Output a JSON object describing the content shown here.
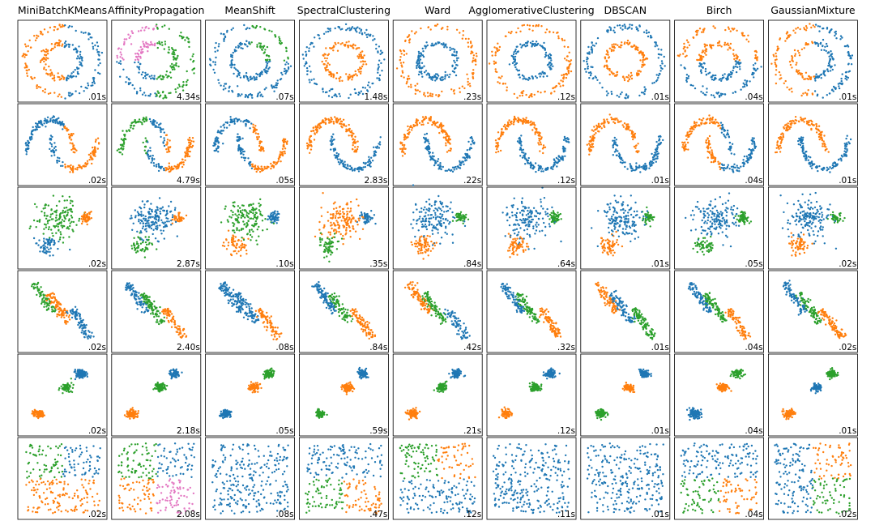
{
  "columns": [
    "MiniBatchKMeans",
    "AffinityPropagation",
    "MeanShift",
    "SpectralClustering",
    "Ward",
    "AgglomerativeClustering",
    "DBSCAN",
    "Birch",
    "GaussianMixture"
  ],
  "times": [
    [
      ".01s",
      "4.34s",
      ".07s",
      "1.48s",
      ".23s",
      ".12s",
      ".01s",
      ".04s",
      ".01s"
    ],
    [
      ".02s",
      "4.79s",
      ".05s",
      "2.83s",
      ".22s",
      ".12s",
      ".01s",
      ".04s",
      ".01s"
    ],
    [
      ".02s",
      "2.87s",
      ".10s",
      ".35s",
      ".84s",
      ".64s",
      ".01s",
      ".05s",
      ".02s"
    ],
    [
      ".02s",
      "2.40s",
      ".08s",
      ".84s",
      ".42s",
      ".32s",
      ".01s",
      ".04s",
      ".02s"
    ],
    [
      ".02s",
      "2.18s",
      ".05s",
      ".59s",
      ".21s",
      ".12s",
      ".01s",
      ".04s",
      ".01s"
    ],
    [
      ".02s",
      "2.08s",
      ".08s",
      ".47s",
      ".12s",
      ".11s",
      ".01s",
      ".04s",
      ".02s"
    ]
  ]
}
